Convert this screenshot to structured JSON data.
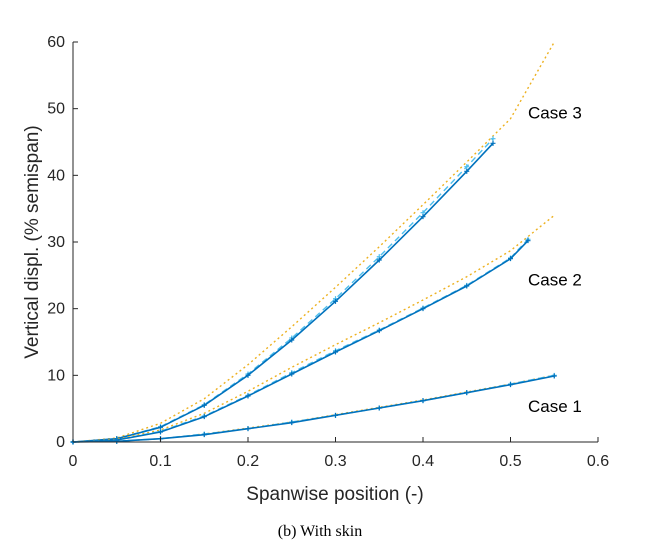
{
  "chart_data": {
    "type": "line",
    "xlabel": "Spanwise position (-)",
    "ylabel": "Vertical displ. (% semispan)",
    "xlim": [
      0,
      0.6
    ],
    "ylim": [
      0,
      60
    ],
    "xticks": [
      "0",
      "0.1",
      "0.2",
      "0.3",
      "0.4",
      "0.5",
      "0.6"
    ],
    "yticks": [
      "0",
      "10",
      "20",
      "30",
      "40",
      "50",
      "60"
    ],
    "grid": false,
    "caption": "(b)  With skin",
    "annotations": [
      {
        "text": "Case 3",
        "x": 0.52,
        "y": 48.5
      },
      {
        "text": "Case 2",
        "x": 0.52,
        "y": 23.5
      },
      {
        "text": "Case 1",
        "x": 0.52,
        "y": 4.5
      }
    ],
    "colors": {
      "solid": "#0072BD",
      "dashed": "#4DBEEE",
      "dotted": "#EDB120"
    },
    "series": [
      {
        "case": "Case 3",
        "style": "dotted",
        "x": [
          0,
          0.05,
          0.1,
          0.15,
          0.2,
          0.25,
          0.3,
          0.35,
          0.4,
          0.45,
          0.5,
          0.55
        ],
        "y": [
          0,
          0.6,
          2.8,
          6.5,
          11.6,
          17.3,
          23.2,
          29.3,
          35.6,
          42.0,
          48.5,
          60.0
        ]
      },
      {
        "case": "Case 3",
        "style": "dashed",
        "x": [
          0,
          0.05,
          0.1,
          0.15,
          0.2,
          0.25,
          0.3,
          0.35,
          0.4,
          0.45,
          0.48
        ],
        "y": [
          0,
          0.5,
          2.3,
          5.6,
          10.2,
          15.6,
          21.5,
          27.8,
          34.4,
          41.3,
          45.5
        ]
      },
      {
        "case": "Case 3",
        "style": "solid",
        "x": [
          0,
          0.05,
          0.1,
          0.15,
          0.2,
          0.25,
          0.3,
          0.35,
          0.4,
          0.45,
          0.48
        ],
        "y": [
          0,
          0.5,
          2.2,
          5.5,
          10.0,
          15.3,
          21.1,
          27.3,
          33.8,
          40.6,
          44.8
        ]
      },
      {
        "case": "Case 2",
        "style": "dotted",
        "x": [
          0,
          0.05,
          0.1,
          0.15,
          0.2,
          0.25,
          0.3,
          0.35,
          0.4,
          0.45,
          0.5,
          0.55
        ],
        "y": [
          0,
          0.4,
          1.8,
          4.3,
          7.6,
          11.2,
          14.6,
          17.9,
          21.3,
          24.8,
          28.7,
          34.0
        ]
      },
      {
        "case": "Case 2",
        "style": "dashed",
        "x": [
          0,
          0.05,
          0.1,
          0.15,
          0.2,
          0.25,
          0.3,
          0.35,
          0.4,
          0.45,
          0.5,
          0.52
        ],
        "y": [
          0,
          0.3,
          1.6,
          3.9,
          7.0,
          10.4,
          13.7,
          16.8,
          20.1,
          23.5,
          27.6,
          30.4
        ]
      },
      {
        "case": "Case 2",
        "style": "solid",
        "x": [
          0,
          0.05,
          0.1,
          0.15,
          0.2,
          0.25,
          0.3,
          0.35,
          0.4,
          0.45,
          0.5,
          0.52
        ],
        "y": [
          0,
          0.3,
          1.5,
          3.8,
          6.9,
          10.2,
          13.5,
          16.7,
          20.0,
          23.4,
          27.5,
          30.2
        ]
      },
      {
        "case": "Case 1",
        "style": "dotted",
        "x": [
          0,
          0.05,
          0.1,
          0.15,
          0.2,
          0.25,
          0.3,
          0.35,
          0.4,
          0.45,
          0.5,
          0.55
        ],
        "y": [
          0,
          0.1,
          0.5,
          1.2,
          2.1,
          3.0,
          4.1,
          5.2,
          6.3,
          7.5,
          8.7,
          10.0
        ]
      },
      {
        "case": "Case 1",
        "style": "dashed",
        "x": [
          0,
          0.05,
          0.1,
          0.15,
          0.2,
          0.25,
          0.3,
          0.35,
          0.4,
          0.45,
          0.5,
          0.55
        ],
        "y": [
          0,
          0.1,
          0.5,
          1.2,
          2.0,
          3.0,
          4.0,
          5.1,
          6.2,
          7.4,
          8.7,
          10.0
        ]
      },
      {
        "case": "Case 1",
        "style": "solid",
        "x": [
          0,
          0.05,
          0.1,
          0.15,
          0.2,
          0.25,
          0.3,
          0.35,
          0.4,
          0.45,
          0.5,
          0.55
        ],
        "y": [
          0,
          0.1,
          0.5,
          1.1,
          2.0,
          2.9,
          4.0,
          5.1,
          6.2,
          7.4,
          8.6,
          9.9
        ]
      }
    ]
  }
}
